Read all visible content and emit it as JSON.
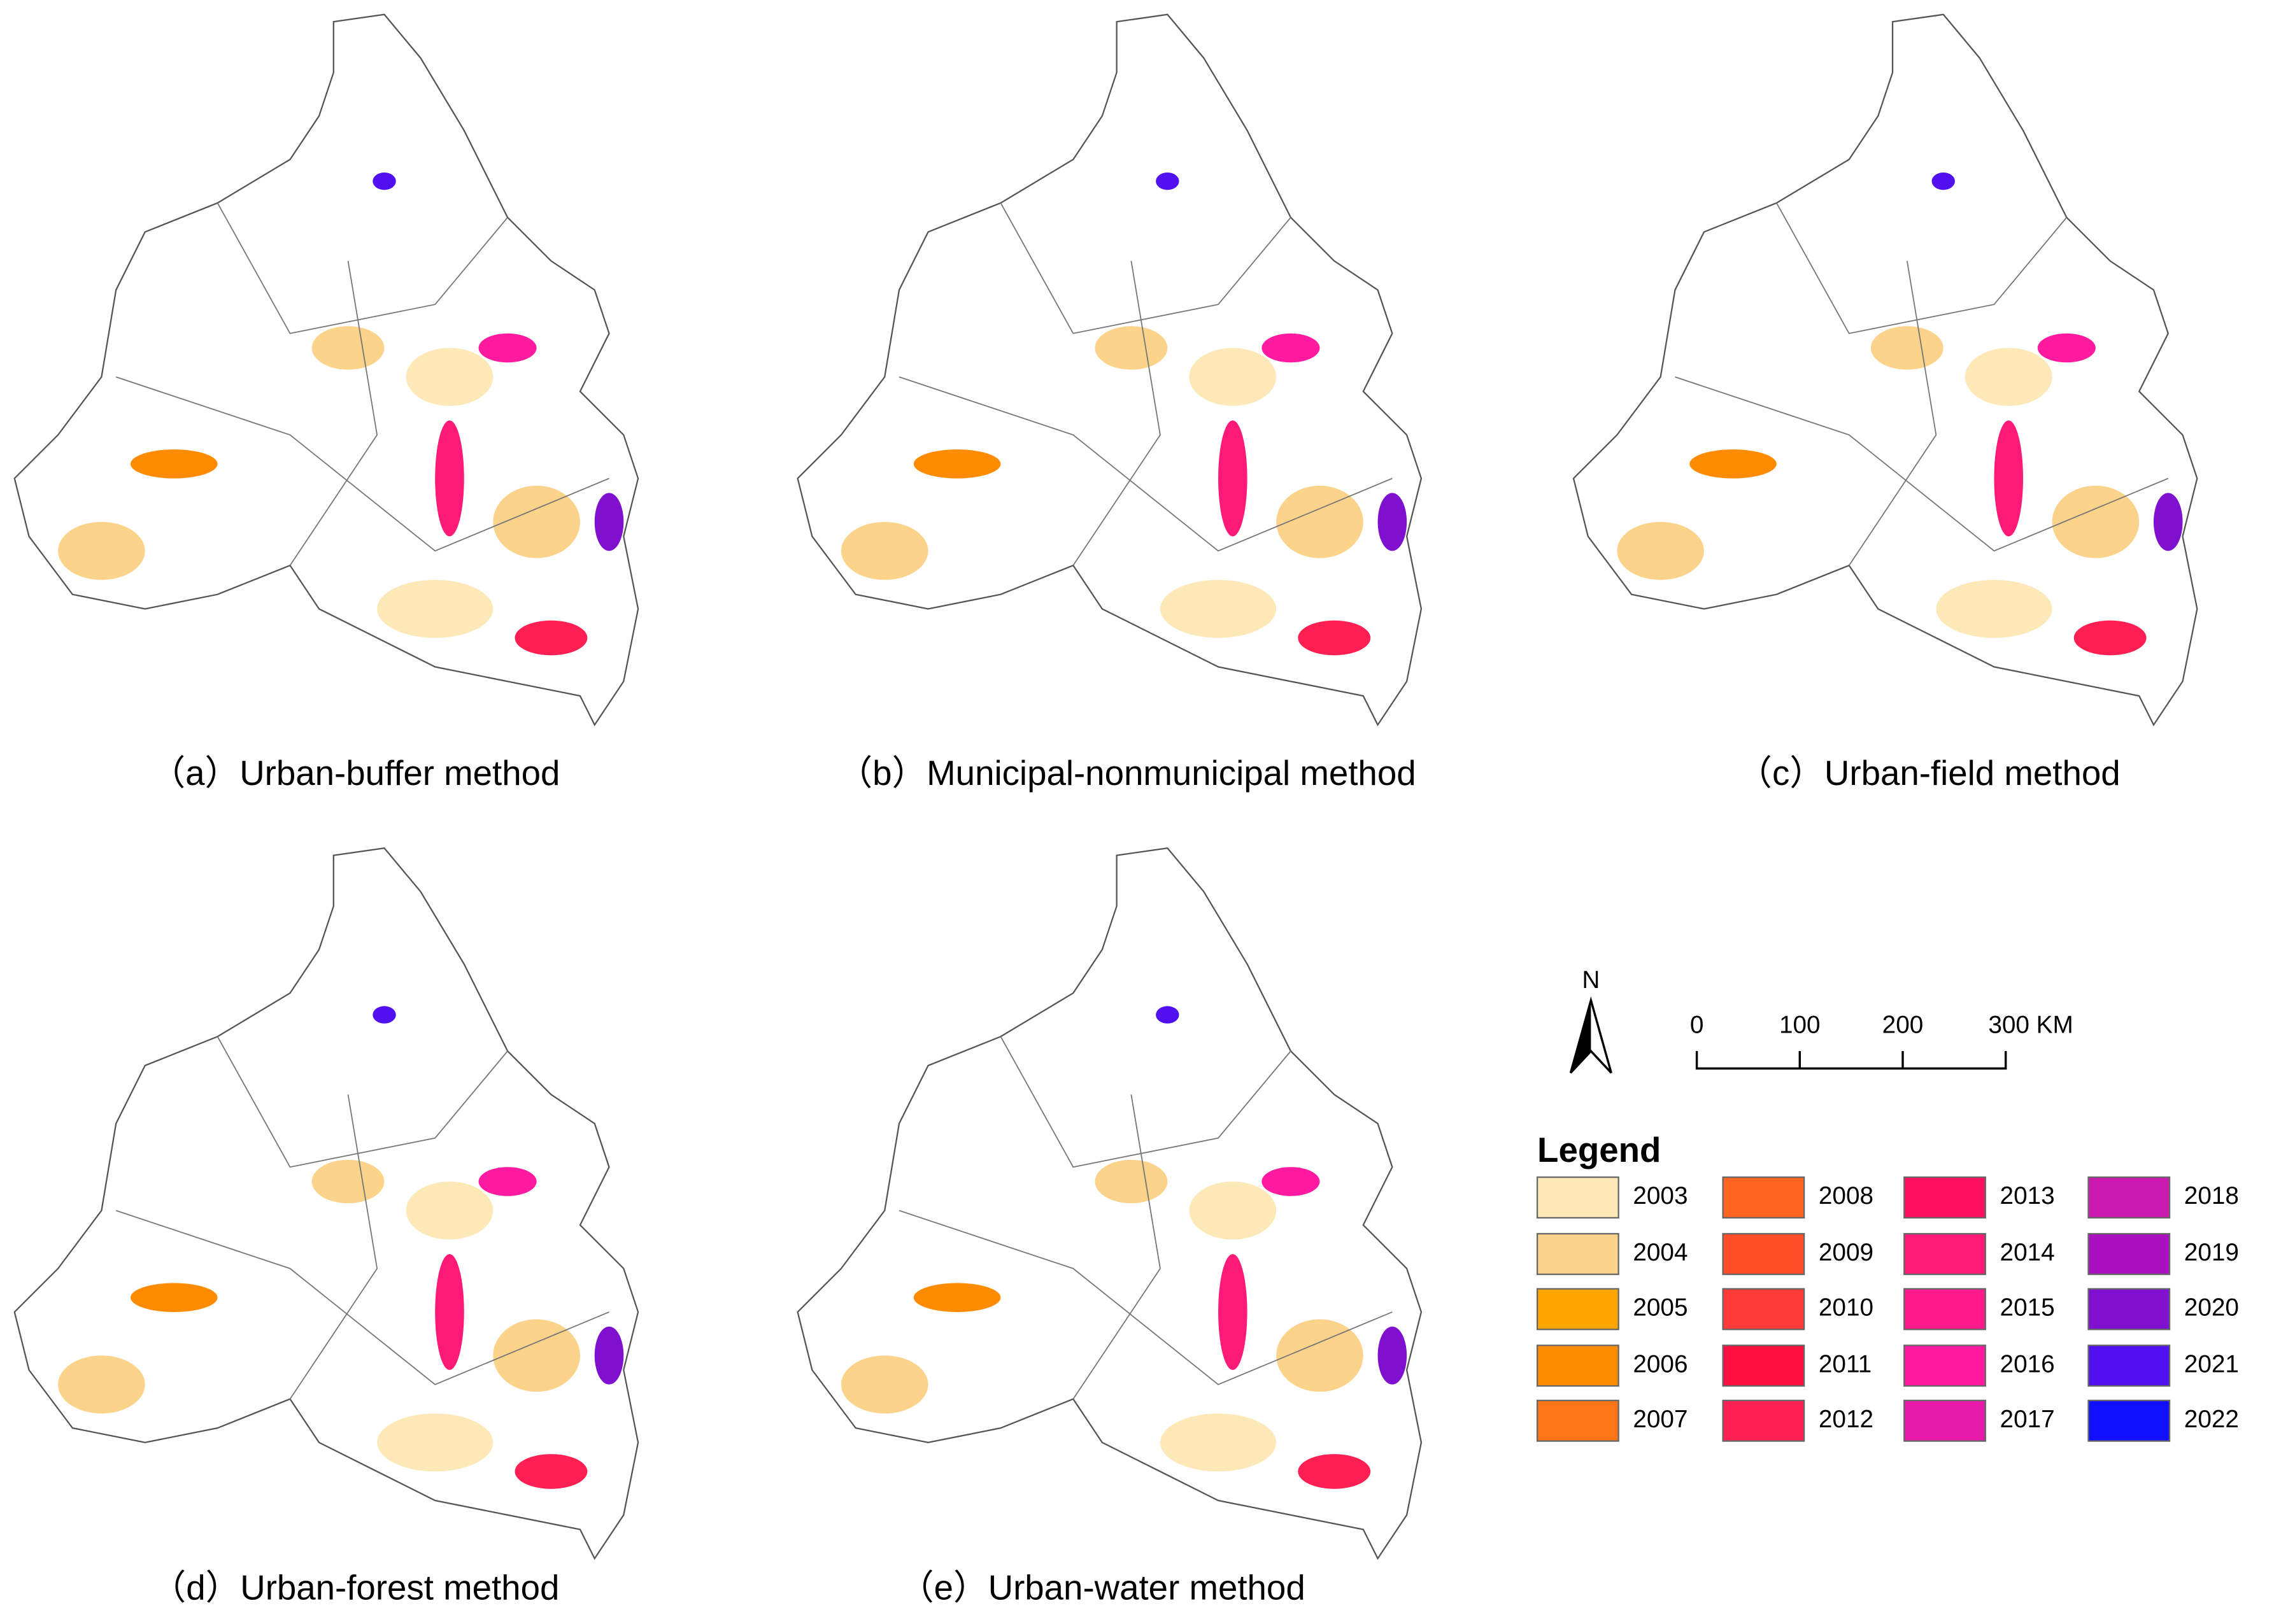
{
  "panels": [
    {
      "caption": "（a）Urban-buffer method"
    },
    {
      "caption": "（b）Municipal-nonmunicipal method"
    },
    {
      "caption": "（c）Urban-field method"
    },
    {
      "caption": "（d）Urban-forest method"
    },
    {
      "caption": "（e）Urban-water method"
    }
  ],
  "north_arrow": {
    "label": "N"
  },
  "scale_bar": {
    "labels": [
      "0",
      "100",
      "200",
      "300 KM"
    ]
  },
  "legend": {
    "title": "Legend",
    "entries": [
      {
        "label": "2003",
        "color": "#fde9b8"
      },
      {
        "label": "2004",
        "color": "#fcd38a"
      },
      {
        "label": "2005",
        "color": "#ffa500"
      },
      {
        "label": "2006",
        "color": "#ff8c00"
      },
      {
        "label": "2007",
        "color": "#ff7417"
      },
      {
        "label": "2008",
        "color": "#ff6420"
      },
      {
        "label": "2009",
        "color": "#ff4e2a"
      },
      {
        "label": "2010",
        "color": "#ff3a38"
      },
      {
        "label": "2011",
        "color": "#ff0f40"
      },
      {
        "label": "2012",
        "color": "#ff1f52"
      },
      {
        "label": "2013",
        "color": "#ff1060"
      },
      {
        "label": "2014",
        "color": "#ff1a78"
      },
      {
        "label": "2015",
        "color": "#ff1a8c"
      },
      {
        "label": "2016",
        "color": "#ff1aa0"
      },
      {
        "label": "2017",
        "color": "#e61aa8"
      },
      {
        "label": "2018",
        "color": "#cc1ab0"
      },
      {
        "label": "2019",
        "color": "#aa10c0"
      },
      {
        "label": "2020",
        "color": "#8010d0"
      },
      {
        "label": "2021",
        "color": "#5010f0"
      },
      {
        "label": "2022",
        "color": "#1010ff"
      }
    ]
  }
}
